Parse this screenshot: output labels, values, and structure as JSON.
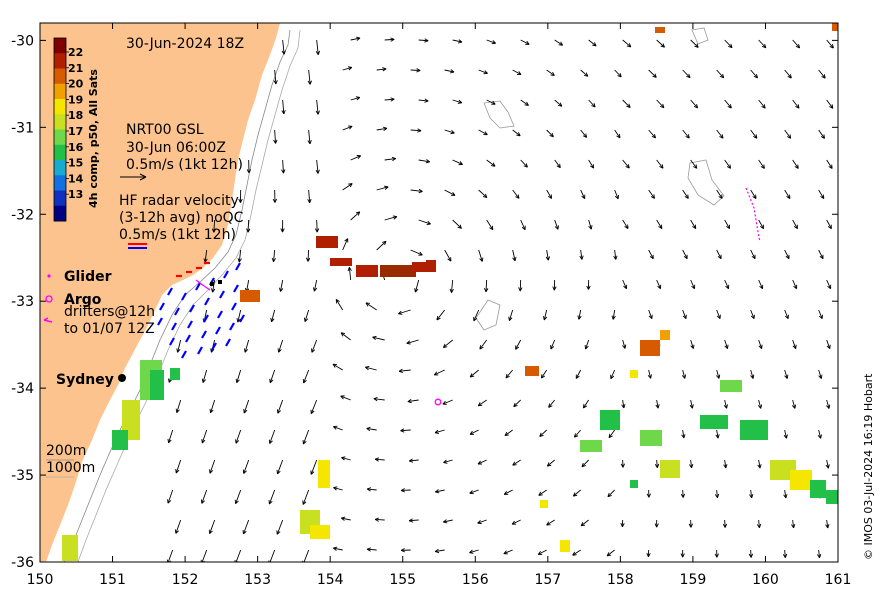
{
  "map": {
    "title": "30-Jun-2024 18Z",
    "x_ticks": [
      "150",
      "151",
      "152",
      "153",
      "154",
      "155",
      "156",
      "157",
      "158",
      "159",
      "160",
      "161"
    ],
    "y_ticks": [
      "-30",
      "-31",
      "-32",
      "-33",
      "-34",
      "-35",
      "-36"
    ],
    "lon_range": [
      150,
      161
    ],
    "lat_range": [
      -36,
      -29.8
    ],
    "colors": {
      "land": "#fcc38e",
      "ocean": "#ffffff",
      "glider": "#ff00ff",
      "drifter": "#ff00ff",
      "radar_red": "#ff0000",
      "radar_blue": "#0000ff"
    }
  },
  "colorbar": {
    "title": "4h comp, p50, All Sats",
    "ticks": [
      "22",
      "21",
      "20",
      "19",
      "18",
      "17",
      "16",
      "15",
      "14",
      "13"
    ],
    "colors": [
      "#7f0000",
      "#b02000",
      "#d85a00",
      "#f0a000",
      "#f5e600",
      "#c8e020",
      "#6ed84a",
      "#22c048",
      "#1aaad0",
      "#1470e0",
      "#1030c0",
      "#000080"
    ]
  },
  "legend": {
    "current_product": "NRT00 GSL",
    "current_time": "30-Jun 06:00Z",
    "current_scale": "0.5m/s (1kt 12h)",
    "radar_title": "HF radar velocity",
    "radar_avg": "(3-12h avg) noQC",
    "radar_scale": "0.5m/s (1kt 12h)",
    "glider": "Glider",
    "argo": "Argo",
    "drifters_line1": "drifters@12h",
    "drifters_line2": "to 01/07 12Z",
    "depth_200": "200m",
    "depth_1000": "1000m",
    "city": "Sydney"
  },
  "credit": "© IMOS 03-Jul-2024 16:19 Hobart"
}
